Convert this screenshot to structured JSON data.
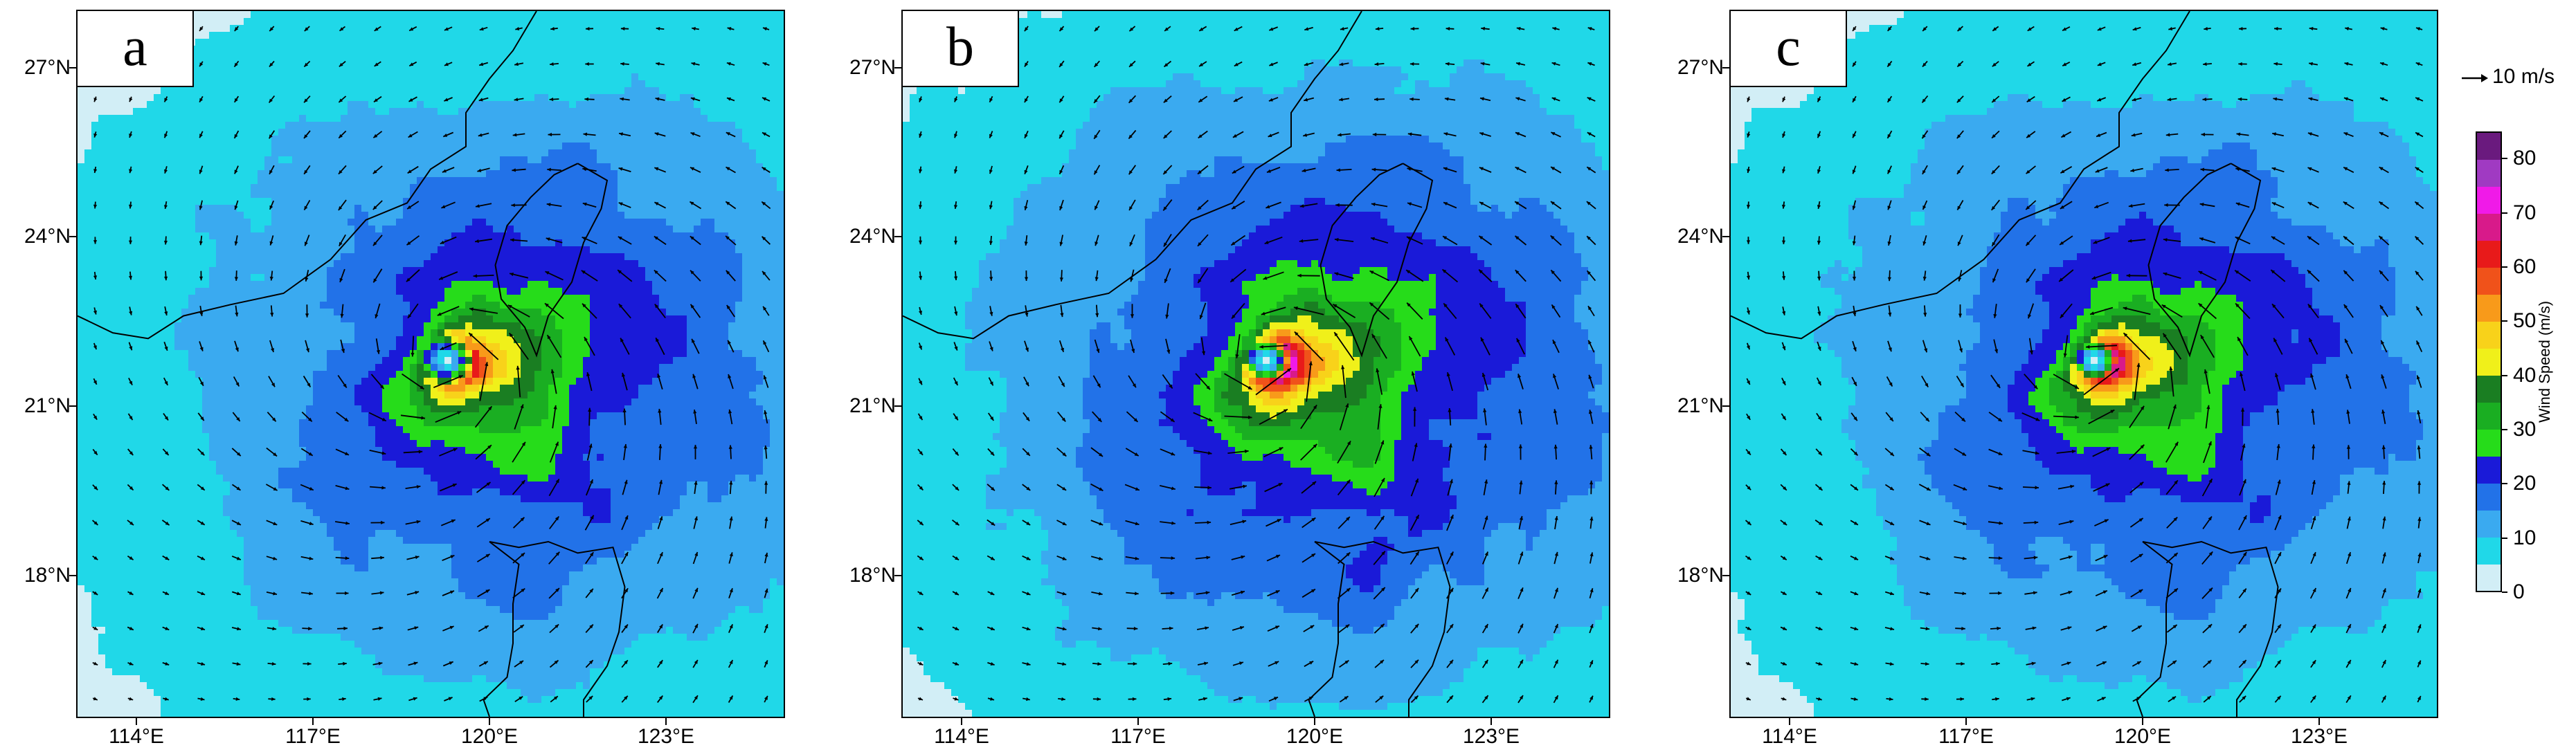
{
  "panels": [
    {
      "label": "a",
      "center_lon": 119.3,
      "center_lat": 21.8,
      "rmw_km": 50,
      "vmax": 48
    },
    {
      "label": "b",
      "center_lon": 119.2,
      "center_lat": 21.8,
      "rmw_km": 42,
      "vmax": 58
    },
    {
      "label": "c",
      "center_lon": 119.2,
      "center_lat": 21.8,
      "rmw_km": 38,
      "vmax": 56
    }
  ],
  "axes": {
    "lon_ticks": [
      "114°E",
      "117°E",
      "120°E",
      "123°E"
    ],
    "lat_ticks": [
      "27°N",
      "24°N",
      "21°N",
      "18°N"
    ],
    "lon_range": [
      113.0,
      125.0
    ],
    "lat_range": [
      15.5,
      28.0
    ]
  },
  "colorbar": {
    "label": "Wind Speed (m/s)",
    "ticks": [
      "0",
      "10",
      "20",
      "30",
      "40",
      "50",
      "60",
      "70",
      "80"
    ],
    "range": [
      0,
      85
    ],
    "levels": [
      0,
      5,
      10,
      15,
      20,
      25,
      30,
      35,
      40,
      45,
      50,
      55,
      60,
      65,
      70,
      75,
      80,
      85
    ],
    "colors": [
      "#d2eef6",
      "#20d8e8",
      "#3aaaf0",
      "#2272e8",
      "#1a1ad8",
      "#26dc1a",
      "#1aae22",
      "#1a7e22",
      "#f0f01a",
      "#f8d21a",
      "#f89a1a",
      "#f0521a",
      "#e81a1a",
      "#d81a8a",
      "#f01ae8",
      "#a03ac2",
      "#6a1a7e"
    ]
  },
  "reference_vector": {
    "label": "10 m/s",
    "speed": 10
  },
  "colors": {
    "land_line": "#000000",
    "arrow": "#000000"
  }
}
